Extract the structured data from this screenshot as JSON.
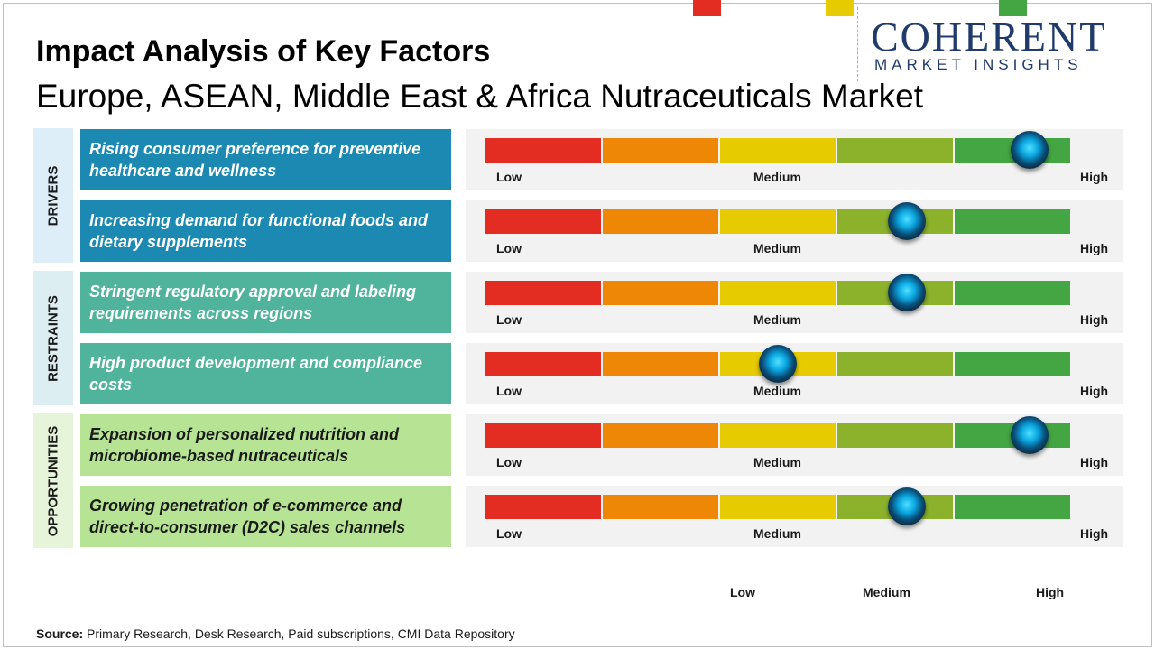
{
  "title": "Impact Analysis of Key Factors",
  "subtitle": "Europe, ASEAN, Middle East & Africa Nutraceuticals Market",
  "logo": {
    "name": "COHERENT",
    "tagline": "MARKET INSIGHTS"
  },
  "chart_data": {
    "type": "table",
    "scale_labels": {
      "low": "Low",
      "medium": "Medium",
      "high": "High"
    },
    "scale_colors": [
      "#e32c22",
      "#ee8606",
      "#e6cb00",
      "#8cb22c",
      "#44a543"
    ],
    "sections": [
      {
        "name": "DRIVERS",
        "color": "#ddeef9",
        "text_color": "#1a1a1a",
        "factor_color": "#1b89b1"
      },
      {
        "name": "RESTRAINTS",
        "color": "#ddeef3",
        "text_color": "#1a1a1a",
        "factor_color": "#4fb49b"
      },
      {
        "name": "OPPORTUNITIES",
        "color": "#e6f4da",
        "text_color": "#1a1a1a",
        "factor_color": "#b6e494"
      }
    ],
    "factors": [
      {
        "section": "DRIVERS",
        "label": "Rising consumer preference for preventive healthcare and wellness",
        "impact": 0.93
      },
      {
        "section": "DRIVERS",
        "label": "Increasing demand for functional foods and dietary supplements",
        "impact": 0.72
      },
      {
        "section": "RESTRAINTS",
        "label": "Stringent regulatory approval and labeling requirements across regions",
        "impact": 0.72
      },
      {
        "section": "RESTRAINTS",
        "label": "High product development and compliance costs",
        "impact": 0.5
      },
      {
        "section": "OPPORTUNITIES",
        "label": "Expansion of personalized nutrition and microbiome-based nutraceuticals",
        "impact": 0.93
      },
      {
        "section": "OPPORTUNITIES",
        "label": "Growing penetration of e-commerce and direct-to-consumer (D2C) sales channels",
        "impact": 0.72
      }
    ],
    "legend": [
      {
        "label": "Low",
        "color": "#e32c22"
      },
      {
        "label": "Medium",
        "color": "#e6cb00"
      },
      {
        "label": "High",
        "color": "#44a543"
      }
    ]
  },
  "source": {
    "label": "Source:",
    "text": " Primary Research, Desk Research, Paid subscriptions, CMI Data Repository"
  }
}
